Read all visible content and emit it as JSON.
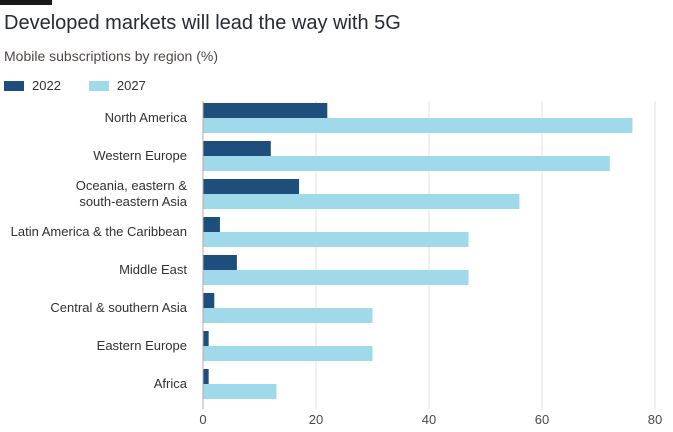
{
  "chart_data": {
    "type": "bar",
    "orientation": "horizontal",
    "title": "Developed markets will lead the way with 5G",
    "subtitle": "Mobile subscriptions by region (%)",
    "categories": [
      [
        "North America"
      ],
      [
        "Western Europe"
      ],
      [
        "Oceania, eastern &",
        "south-eastern Asia"
      ],
      [
        "Latin America & the Caribbean"
      ],
      [
        "Middle East"
      ],
      [
        "Central & southern Asia"
      ],
      [
        "Eastern Europe"
      ],
      [
        "Africa"
      ]
    ],
    "series": [
      {
        "name": "2022",
        "color": "#1e4f7c",
        "values": [
          22,
          12,
          17,
          3,
          6,
          2,
          1,
          1
        ]
      },
      {
        "name": "2027",
        "color": "#9fd9ea",
        "values": [
          76,
          72,
          56,
          47,
          47,
          30,
          30,
          13
        ]
      }
    ],
    "xlim": [
      0,
      80
    ],
    "xticks": [
      "0",
      "20",
      "40",
      "60",
      "80"
    ],
    "grid": true,
    "legend_position": "top-left"
  }
}
